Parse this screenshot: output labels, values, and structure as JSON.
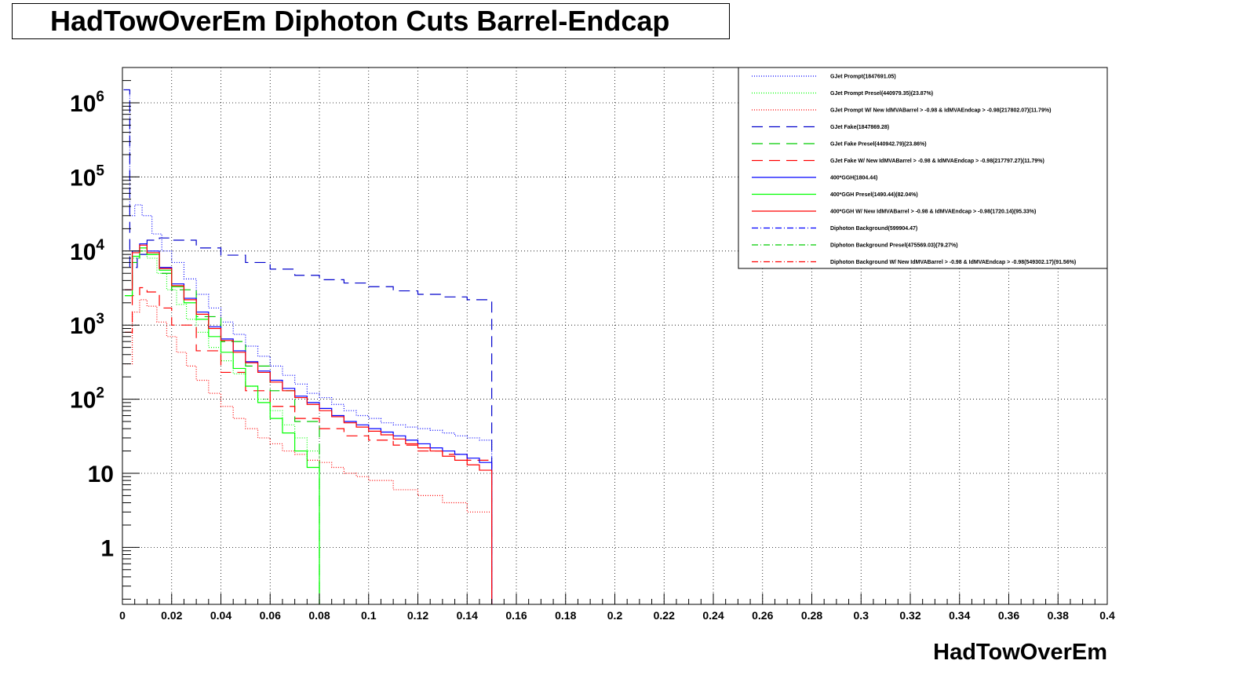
{
  "chart_data": {
    "type": "line",
    "title": "HadTowOverEm Diphoton Cuts Barrel-Endcap",
    "xlabel": "HadTowOverEm",
    "ylabel": "",
    "xlim": [
      0,
      0.4
    ],
    "ylim": [
      0.17,
      3000000
    ],
    "log_y": true,
    "grid": true,
    "legend_position": "top-right",
    "x_ticks": [
      "0",
      "0.02",
      "0.04",
      "0.06",
      "0.08",
      "0.1",
      "0.12",
      "0.14",
      "0.16",
      "0.18",
      "0.2",
      "0.22",
      "0.24",
      "0.26",
      "0.28",
      "0.3",
      "0.32",
      "0.34",
      "0.36",
      "0.38",
      "0.4"
    ],
    "y_ticks": [
      {
        "base": "1",
        "exp": "",
        "value": 1
      },
      {
        "base": "10",
        "exp": "",
        "value": 10
      },
      {
        "base": "10",
        "exp": "2",
        "value": 100
      },
      {
        "base": "10",
        "exp": "3",
        "value": 1000
      },
      {
        "base": "10",
        "exp": "4",
        "value": 10000
      },
      {
        "base": "10",
        "exp": "5",
        "value": 100000
      },
      {
        "base": "10",
        "exp": "6",
        "value": 1000000
      }
    ],
    "series": [
      {
        "name": "GJet Prompt(1847691.05)",
        "color": "#0000ff",
        "style": "dotted",
        "x": [
          0.0005,
          0.003,
          0.005,
          0.008,
          0.012,
          0.016,
          0.02,
          0.025,
          0.03,
          0.035,
          0.04,
          0.045,
          0.05,
          0.055,
          0.06,
          0.065,
          0.07,
          0.075,
          0.08,
          0.085,
          0.09,
          0.095,
          0.1,
          0.105,
          0.11,
          0.115,
          0.12,
          0.125,
          0.13,
          0.135,
          0.14,
          0.145,
          0.15
        ],
        "y": [
          1500000,
          30000,
          42000,
          30000,
          17000,
          10000,
          7000,
          4200,
          2600,
          1700,
          1100,
          750,
          520,
          380,
          280,
          210,
          160,
          120,
          105,
          85,
          70,
          60,
          55,
          48,
          45,
          42,
          40,
          38,
          35,
          32,
          30,
          28,
          26
        ]
      },
      {
        "name": "GJet Prompt Presel(440979.35)(23.87%)",
        "color": "#00ff00",
        "style": "dotted",
        "x": [
          0.001,
          0.004,
          0.007,
          0.01,
          0.014,
          0.018,
          0.022,
          0.026,
          0.03,
          0.035,
          0.04,
          0.045,
          0.05,
          0.055,
          0.06,
          0.065,
          0.07,
          0.075,
          0.08
        ],
        "y": [
          3000,
          8000,
          10000,
          8000,
          5000,
          3000,
          1900,
          1200,
          800,
          500,
          330,
          220,
          150,
          100,
          70,
          45,
          30,
          20,
          12
        ]
      },
      {
        "name": "GJet Prompt W/ New IdMVABarrel > -0.98 & IdMVAEndcap > -0.98(217802.07)(11.79%)",
        "color": "#ff0000",
        "style": "dotted",
        "x": [
          0.001,
          0.004,
          0.007,
          0.01,
          0.014,
          0.018,
          0.022,
          0.026,
          0.03,
          0.035,
          0.04,
          0.045,
          0.05,
          0.055,
          0.06,
          0.065,
          0.07,
          0.075,
          0.08,
          0.085,
          0.09,
          0.095,
          0.1,
          0.11,
          0.12,
          0.13,
          0.14,
          0.15
        ],
        "y": [
          300,
          1500,
          2200,
          1800,
          1100,
          700,
          430,
          280,
          180,
          120,
          80,
          55,
          40,
          30,
          25,
          20,
          18,
          15,
          14,
          12,
          10,
          9,
          8,
          6,
          5,
          4,
          3,
          3
        ]
      },
      {
        "name": "GJet Fake(1847869.28)",
        "color": "#0000cc",
        "style": "longdash",
        "x": [
          0.0005,
          0.003,
          0.006,
          0.01,
          0.015,
          0.02,
          0.03,
          0.04,
          0.05,
          0.06,
          0.07,
          0.08,
          0.09,
          0.1,
          0.11,
          0.12,
          0.13,
          0.14,
          0.15
        ],
        "y": [
          1500000,
          6000,
          9000,
          14000,
          15000,
          14000,
          11000,
          8800,
          7000,
          5700,
          4700,
          4100,
          3700,
          3300,
          2900,
          2600,
          2400,
          2200,
          2000
        ]
      },
      {
        "name": "GJet Fake Presel(440942.79)(23.86%)",
        "color": "#00cc00",
        "style": "longdash",
        "x": [
          0.001,
          0.004,
          0.007,
          0.01,
          0.015,
          0.02,
          0.03,
          0.04,
          0.05,
          0.06,
          0.07,
          0.08
        ],
        "y": [
          2500,
          7000,
          10000,
          9000,
          5000,
          3000,
          1300,
          600,
          280,
          130,
          50,
          25
        ]
      },
      {
        "name": "GJet Fake W/ New IdMVABarrel > -0.98 & IdMVAEndcap > -0.98(217797.27)(11.79%)",
        "color": "#ff0000",
        "style": "longdash",
        "x": [
          0.001,
          0.004,
          0.007,
          0.01,
          0.015,
          0.02,
          0.03,
          0.04,
          0.05,
          0.06,
          0.07,
          0.08,
          0.09,
          0.1,
          0.11,
          0.12,
          0.13,
          0.14,
          0.15
        ],
        "y": [
          800,
          2500,
          3200,
          2800,
          1700,
          1000,
          450,
          230,
          130,
          80,
          55,
          40,
          32,
          28,
          24,
          20,
          18,
          15,
          14
        ]
      },
      {
        "name": "400*GGH(1804.44)",
        "color": "#0000ff",
        "style": "solid",
        "x": [
          0.001,
          0.004,
          0.007,
          0.01,
          0.015,
          0.02,
          0.025,
          0.03,
          0.035,
          0.04,
          0.045,
          0.05,
          0.055,
          0.06,
          0.065,
          0.07,
          0.075,
          0.08,
          0.085,
          0.09,
          0.095,
          0.1,
          0.105,
          0.11,
          0.115,
          0.12,
          0.125,
          0.13,
          0.135,
          0.14,
          0.145,
          0.15
        ],
        "y": [
          3000,
          10000,
          12500,
          10000,
          6000,
          3600,
          2300,
          1500,
          950,
          650,
          450,
          320,
          240,
          180,
          140,
          110,
          90,
          75,
          60,
          50,
          45,
          40,
          36,
          32,
          28,
          25,
          22,
          20,
          18,
          16,
          14,
          12
        ]
      },
      {
        "name": "400*GGH Presel(1490.44)(82.04%)",
        "color": "#00ff00",
        "style": "solid",
        "x": [
          0.001,
          0.004,
          0.007,
          0.01,
          0.015,
          0.02,
          0.025,
          0.03,
          0.035,
          0.04,
          0.045,
          0.05,
          0.055,
          0.06,
          0.065,
          0.07,
          0.075,
          0.08
        ],
        "y": [
          2500,
          8500,
          11000,
          9000,
          5500,
          3300,
          2000,
          1200,
          700,
          430,
          260,
          150,
          90,
          55,
          35,
          20,
          12,
          0.3
        ]
      },
      {
        "name": "400*GGH W/ New IdMVABarrel > -0.98 & IdMVAEndcap > -0.98(1720.14)(95.33%)",
        "color": "#ff0000",
        "style": "solid",
        "x": [
          0.001,
          0.004,
          0.007,
          0.01,
          0.015,
          0.02,
          0.025,
          0.03,
          0.035,
          0.04,
          0.045,
          0.05,
          0.055,
          0.06,
          0.065,
          0.07,
          0.075,
          0.08,
          0.085,
          0.09,
          0.095,
          0.1,
          0.105,
          0.11,
          0.115,
          0.12,
          0.125,
          0.13,
          0.135,
          0.14,
          0.145,
          0.15
        ],
        "y": [
          3000,
          9500,
          12000,
          9500,
          5800,
          3400,
          2200,
          1400,
          900,
          620,
          430,
          310,
          230,
          170,
          130,
          105,
          85,
          70,
          58,
          48,
          42,
          37,
          33,
          29,
          25,
          22,
          20,
          17,
          15,
          13,
          11,
          10
        ]
      },
      {
        "name": "Diphoton Background(599904.47)",
        "color": "#0000ff",
        "style": "dashdot",
        "x": [],
        "y": []
      },
      {
        "name": "Diphoton Background Presel(475569.03)(79.27%)",
        "color": "#00cc00",
        "style": "dashdot",
        "x": [],
        "y": []
      },
      {
        "name": "Diphoton Background W/ New IdMVABarrel > -0.98 & IdMVAEndcap > -0.98(549302.17)(91.56%)",
        "color": "#ff0000",
        "style": "dashdot",
        "x": [],
        "y": []
      }
    ]
  }
}
